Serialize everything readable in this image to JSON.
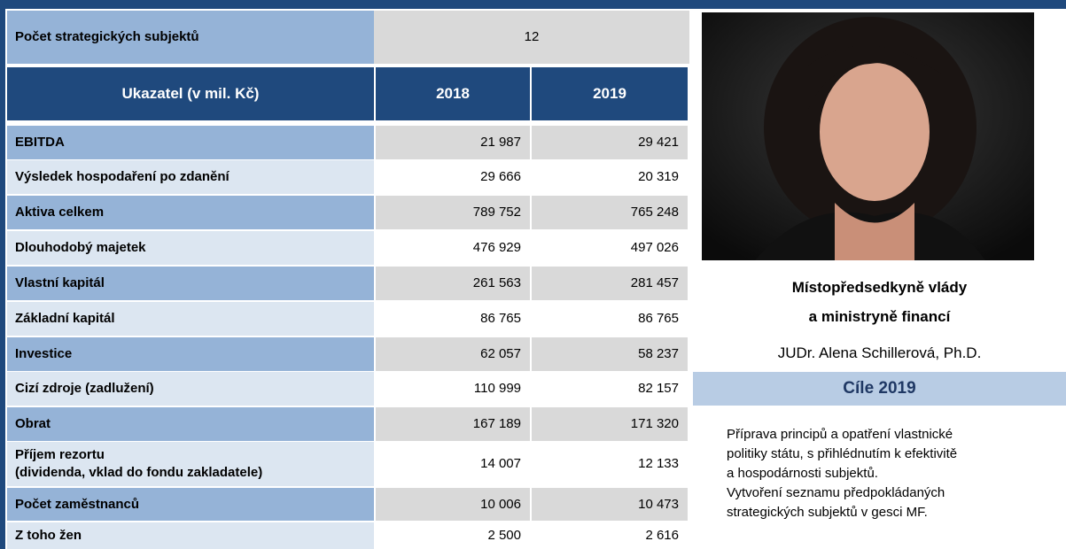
{
  "summary": {
    "label": "Počet strategických subjektů",
    "value": "12"
  },
  "table": {
    "header": [
      "Ukazatel (v mil. Kč)",
      "2018",
      "2019"
    ],
    "rows": [
      [
        "EBITDA",
        "21 987",
        "29 421"
      ],
      [
        "Výsledek hospodaření po zdanění",
        "29 666",
        "20 319"
      ],
      [
        "Aktiva celkem",
        "789 752",
        "765 248"
      ],
      [
        "Dlouhodobý majetek",
        "476 929",
        "497 026"
      ],
      [
        "Vlastní kapitál",
        "261 563",
        "281 457"
      ],
      [
        "Základní kapitál",
        "86 765",
        "86 765"
      ],
      [
        "Investice",
        "62 057",
        "58 237"
      ],
      [
        "Cizí zdroje (zadlužení)",
        "110 999",
        "82 157"
      ],
      [
        "Obrat",
        "167 189",
        "171 320"
      ],
      [
        "Příjem rezortu\n(dividenda, vklad do fondu zakladatele)",
        "14 007",
        "12 133"
      ],
      [
        "Počet zaměstnanců",
        "10 006",
        "10 473"
      ],
      [
        "Z toho žen",
        "2 500",
        "2 616"
      ]
    ]
  },
  "profile": {
    "title_lines": [
      "Místopředsedkyně vlády",
      "a ministryně financí"
    ],
    "name": "JUDr. Alena Schillerová, Ph.D."
  },
  "goals": {
    "title": "Cíle 2019",
    "lines": [
      "Příprava principů a opatření vlastnické",
      "politiky státu, s přihlédnutím k efektivitě",
      "a hospodárnosti subjektů.",
      "Vytvoření seznamu předpokládaných",
      "strategických subjektů v gesci MF."
    ]
  }
}
